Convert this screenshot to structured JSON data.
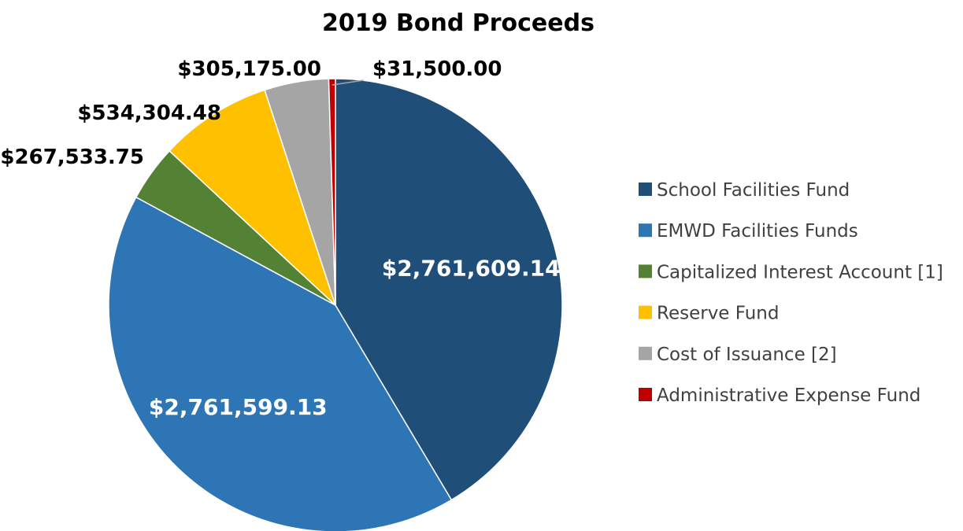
{
  "chart_data": {
    "type": "pie",
    "title": "2019 Bond Proceeds",
    "slices": [
      {
        "name": "School Facilities Fund",
        "value": 2761609.14,
        "label": "$2,761,609.14",
        "color": "#1F4E79"
      },
      {
        "name": "EMWD Facilities Funds",
        "value": 2761599.13,
        "label": "$2,761,599.13",
        "color": "#2E75B6"
      },
      {
        "name": "Capitalized Interest Account [1]",
        "value": 267533.75,
        "label": "$267,533.75",
        "color": "#548235"
      },
      {
        "name": "Reserve Fund",
        "value": 534304.48,
        "label": "$534,304.48",
        "color": "#FFC000"
      },
      {
        "name": "Cost of Issuance [2]",
        "value": 305175.0,
        "label": "$305,175.00",
        "color": "#A5A5A5"
      },
      {
        "name": "Administrative Expense Fund",
        "value": 31500.0,
        "label": "$31,500.00",
        "color": "#C00000"
      }
    ],
    "legend_position": "right",
    "direction": "clockwise",
    "start": "top"
  }
}
